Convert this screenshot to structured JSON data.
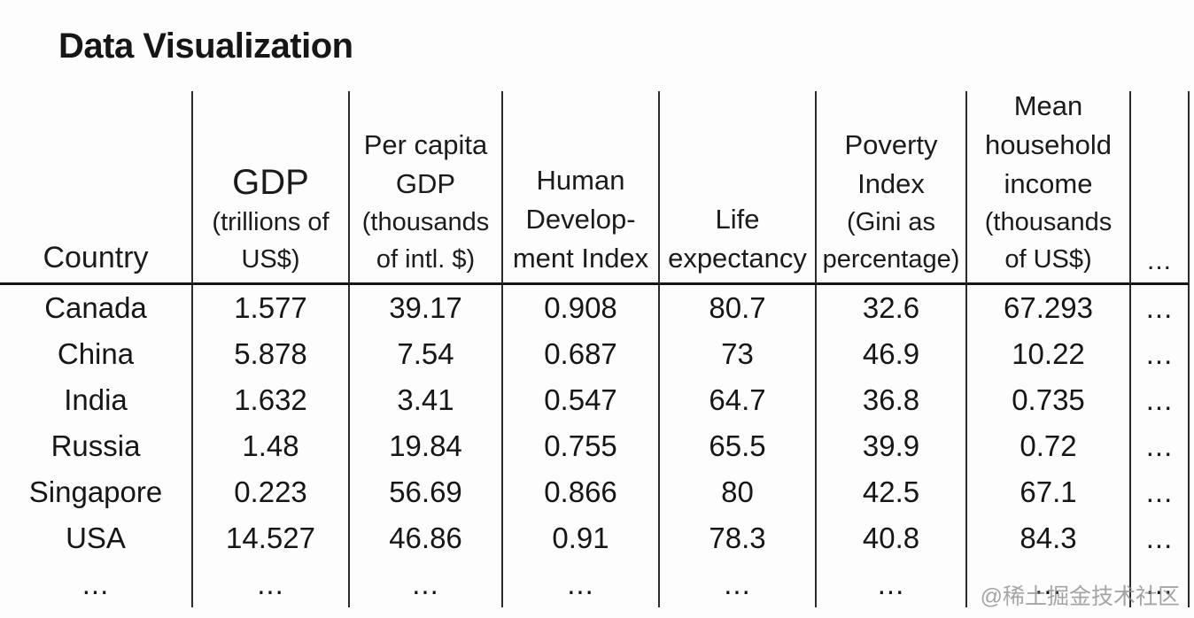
{
  "page": {
    "title": "Data Visualization",
    "watermark": "@稀土掘金技术社区"
  },
  "headers": [
    {
      "name": "country",
      "lines": [
        "Country"
      ],
      "sub": []
    },
    {
      "name": "gdp",
      "lines": [
        "GDP"
      ],
      "sub": [
        "(trillions of",
        "US$)"
      ]
    },
    {
      "name": "per-capita-gdp",
      "lines": [
        "Per capita",
        "GDP"
      ],
      "sub": [
        "(thousands",
        "of intl. $)"
      ]
    },
    {
      "name": "human-development-index",
      "lines": [
        "Human",
        "Develop-",
        "ment Index"
      ],
      "sub": []
    },
    {
      "name": "life-expectancy",
      "lines": [
        "Life",
        "expectancy"
      ],
      "sub": []
    },
    {
      "name": "poverty-index",
      "lines": [
        "Poverty",
        "Index"
      ],
      "sub": [
        "(Gini as",
        "percentage)"
      ]
    },
    {
      "name": "mean-household-income",
      "lines": [
        "Mean",
        "household",
        "income"
      ],
      "sub": [
        "(thousands",
        "of US$)"
      ]
    },
    {
      "name": "more-columns",
      "lines": [
        "..."
      ],
      "sub": []
    }
  ],
  "chart_data": {
    "type": "table",
    "title": "Data Visualization",
    "columns": [
      "Country",
      "GDP (trillions of US$)",
      "Per capita GDP (thousands of intl. $)",
      "Human Development Index",
      "Life expectancy",
      "Poverty Index (Gini as percentage)",
      "Mean household income (thousands of US$)",
      "..."
    ],
    "rows": [
      [
        "Canada",
        "1.577",
        "39.17",
        "0.908",
        "80.7",
        "32.6",
        "67.293",
        "..."
      ],
      [
        "China",
        "5.878",
        "7.54",
        "0.687",
        "73",
        "46.9",
        "10.22",
        "..."
      ],
      [
        "India",
        "1.632",
        "3.41",
        "0.547",
        "64.7",
        "36.8",
        "0.735",
        "..."
      ],
      [
        "Russia",
        "1.48",
        "19.84",
        "0.755",
        "65.5",
        "39.9",
        "0.72",
        "..."
      ],
      [
        "Singapore",
        "0.223",
        "56.69",
        "0.866",
        "80",
        "42.5",
        "67.1",
        "..."
      ],
      [
        "USA",
        "14.527",
        "46.86",
        "0.91",
        "78.3",
        "40.8",
        "84.3",
        "..."
      ],
      [
        "...",
        "...",
        "...",
        "...",
        "...",
        "...",
        "...",
        "..."
      ]
    ]
  }
}
